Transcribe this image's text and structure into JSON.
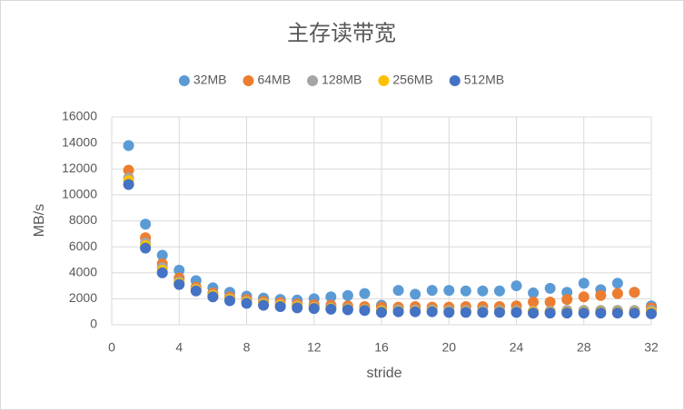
{
  "chart_data": {
    "type": "scatter",
    "title": "主存读带宽",
    "x_label": "stride",
    "y_label": "MB/s",
    "x": [
      1,
      2,
      3,
      4,
      5,
      6,
      7,
      8,
      9,
      10,
      11,
      12,
      13,
      14,
      15,
      16,
      17,
      18,
      19,
      20,
      21,
      22,
      23,
      24,
      25,
      26,
      27,
      28,
      29,
      30,
      31,
      32
    ],
    "series": [
      {
        "name": "32MB",
        "color": "#5b9bd5",
        "values": [
          13800,
          7750,
          5350,
          4200,
          3400,
          2850,
          2500,
          2200,
          2050,
          1950,
          1900,
          2000,
          2150,
          2250,
          2400,
          1500,
          2650,
          2350,
          2650,
          2650,
          2600,
          2600,
          2600,
          3000,
          2450,
          2800,
          2500,
          3200,
          2700,
          3200,
          2500,
          1450
        ]
      },
      {
        "name": "64MB",
        "color": "#ed7d31",
        "values": [
          11900,
          6700,
          4700,
          3600,
          2900,
          2450,
          2150,
          1950,
          1800,
          1700,
          1600,
          1550,
          1500,
          1450,
          1400,
          1350,
          1350,
          1400,
          1350,
          1350,
          1400,
          1400,
          1400,
          1450,
          1750,
          1750,
          1950,
          2150,
          2250,
          2400,
          2500,
          1300
        ]
      },
      {
        "name": "128MB",
        "color": "#a5a5a5",
        "values": [
          11300,
          6300,
          4400,
          3300,
          2750,
          2300,
          2000,
          1800,
          1650,
          1550,
          1450,
          1350,
          1300,
          1250,
          1200,
          1100,
          1150,
          1150,
          1150,
          1100,
          1100,
          1100,
          1100,
          1100,
          1050,
          1050,
          1100,
          1100,
          1100,
          1100,
          1100,
          1100
        ]
      },
      {
        "name": "256MB",
        "color": "#ffc000",
        "values": [
          11100,
          6100,
          4200,
          3200,
          2700,
          2250,
          1950,
          1750,
          1600,
          1500,
          1400,
          1300,
          1250,
          1200,
          1150,
          1050,
          1050,
          1050,
          1050,
          1000,
          1000,
          1000,
          1000,
          1000,
          1000,
          950,
          950,
          950,
          950,
          950,
          950,
          950
        ]
      },
      {
        "name": "512MB",
        "color": "#4472c4",
        "values": [
          10800,
          5900,
          4000,
          3100,
          2600,
          2150,
          1850,
          1650,
          1500,
          1400,
          1300,
          1250,
          1200,
          1150,
          1100,
          950,
          1000,
          1000,
          1000,
          950,
          950,
          950,
          950,
          950,
          900,
          900,
          900,
          900,
          900,
          900,
          900,
          850
        ]
      }
    ],
    "xlim": [
      0,
      32
    ],
    "xticks": [
      0,
      4,
      8,
      12,
      16,
      20,
      24,
      28,
      32
    ],
    "ylim": [
      0,
      16000
    ],
    "yticks": [
      0,
      2000,
      4000,
      6000,
      8000,
      10000,
      12000,
      14000,
      16000
    ],
    "grid": true,
    "legend": "top"
  }
}
